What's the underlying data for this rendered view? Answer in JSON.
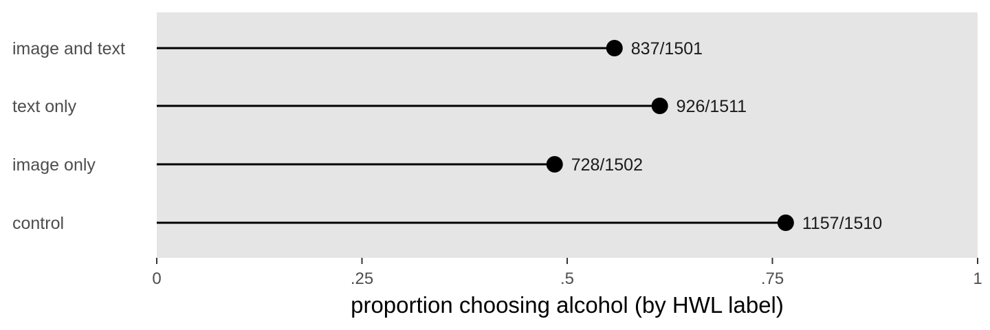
{
  "colors": {
    "panel_background": "#e5e5e5",
    "stem": "#000000",
    "point": "#000000",
    "tick": "#333333"
  },
  "chart_data": {
    "type": "lollipop",
    "orientation": "horizontal",
    "categories": [
      "image and text",
      "text only",
      "image only",
      "control"
    ],
    "values": [
      0.5576,
      0.6128,
      0.4847,
      0.7662
    ],
    "data_labels": [
      "837/1501",
      "926/1511",
      "728/1502",
      "1157/1510"
    ],
    "xlabel": "proportion choosing alcohol (by HWL label)",
    "xlim": [
      0,
      1
    ],
    "x_ticks": [
      0,
      0.25,
      0.5,
      0.75,
      1
    ],
    "x_tick_labels": [
      "0",
      ".25",
      ".5",
      ".75",
      "1"
    ],
    "grid": false,
    "legend": "none"
  }
}
